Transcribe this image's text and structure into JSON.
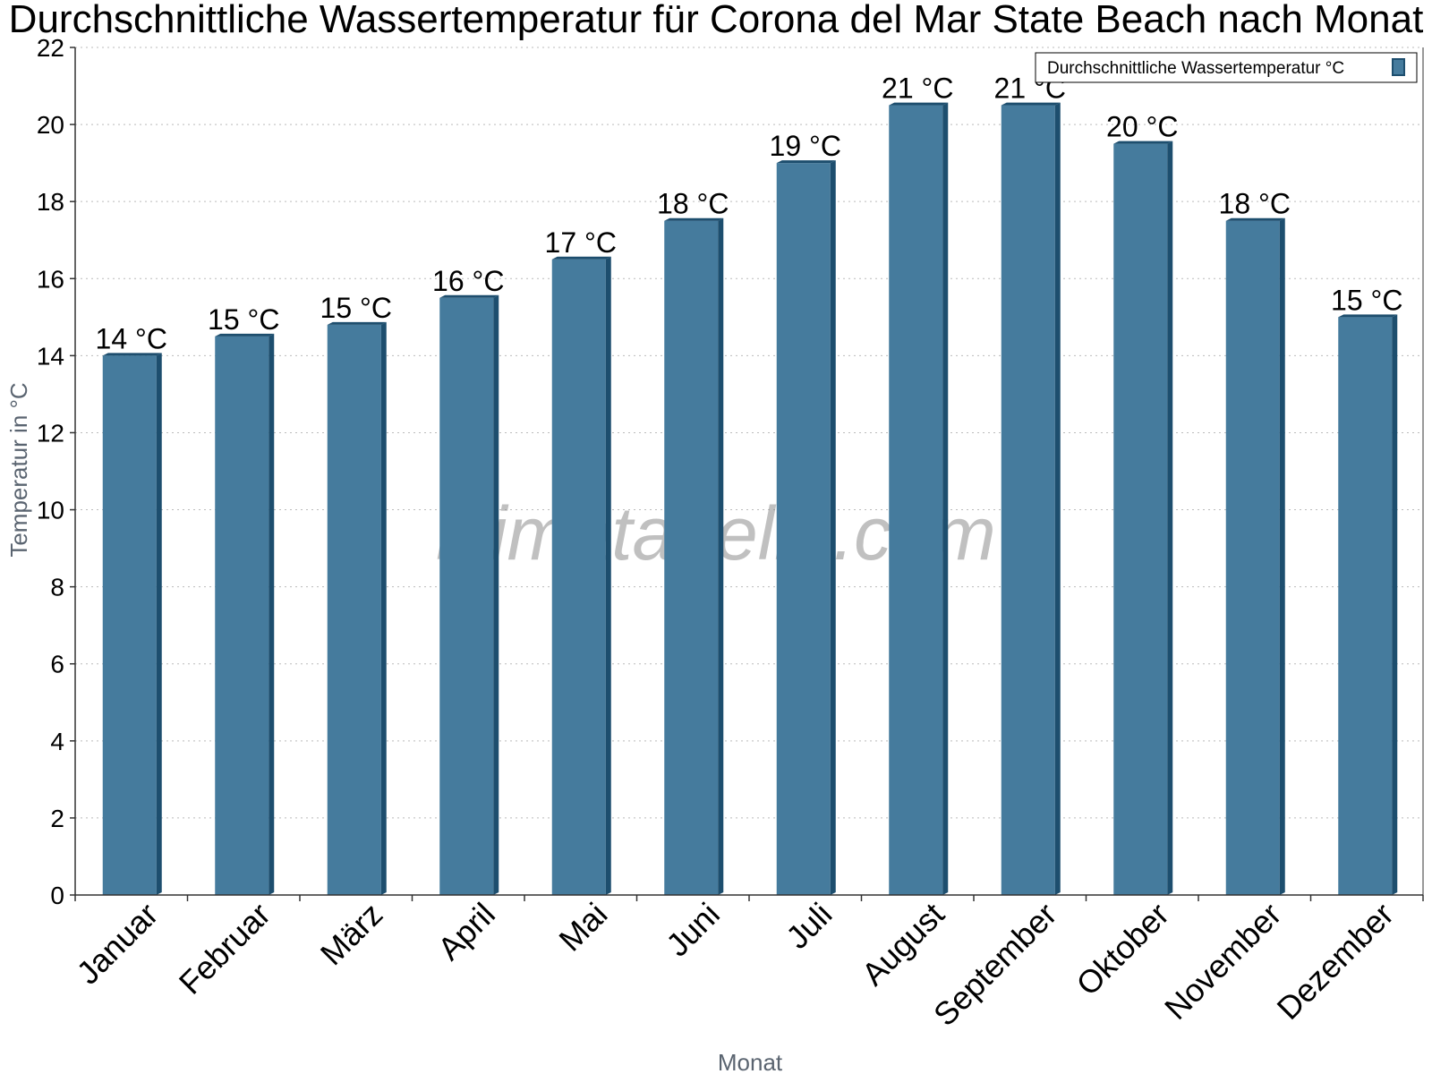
{
  "chart_data": {
    "type": "bar",
    "title": "Durchschnittliche Wassertemperatur für Corona del Mar State Beach nach Monat",
    "xlabel": "Monat",
    "ylabel": "Temperatur in °C",
    "ylim": [
      0,
      22
    ],
    "yticks": [
      "0",
      "2",
      "4",
      "6",
      "8",
      "10",
      "12",
      "14",
      "16",
      "18",
      "20",
      "22"
    ],
    "grid": "horizontal-dotted",
    "legend_position": "top-right",
    "watermark": "klimatabelle.com",
    "categories": [
      "Januar",
      "Februar",
      "März",
      "April",
      "Mai",
      "Juni",
      "Juli",
      "August",
      "September",
      "Oktober",
      "November",
      "Dezember"
    ],
    "series": [
      {
        "name": "Durchschnittliche Wassertemperatur °C",
        "color": "#457b9d",
        "side_color": "#1d4e6e",
        "values": [
          14.0,
          14.5,
          14.8,
          15.5,
          16.5,
          17.5,
          19.0,
          20.5,
          20.5,
          19.5,
          17.5,
          15.0
        ],
        "labels": [
          "14 °C",
          "15 °C",
          "15 °C",
          "16 °C",
          "17 °C",
          "18 °C",
          "19 °C",
          "21 °C",
          "21 °C",
          "20 °C",
          "18 °C",
          "15 °C"
        ]
      }
    ]
  }
}
